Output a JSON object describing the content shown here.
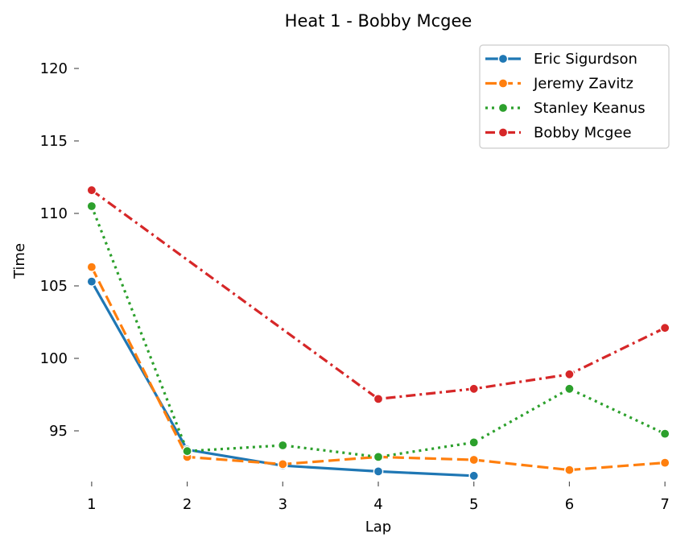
{
  "chart_data": {
    "type": "line",
    "title": "Heat 1 - Bobby Mcgee",
    "xlabel": "Lap",
    "ylabel": "Time",
    "x": [
      1,
      2,
      3,
      4,
      5,
      6,
      7
    ],
    "xticks": [
      "1",
      "2",
      "3",
      "4",
      "5",
      "6",
      "7"
    ],
    "yticks": [
      95,
      100,
      105,
      110,
      115,
      120
    ],
    "ytick_labels": [
      "95",
      "100",
      "105",
      "110",
      "115",
      "120"
    ],
    "xlim": [
      0.9,
      7.1
    ],
    "ylim": [
      91.5,
      122.5
    ],
    "grid": false,
    "legend_position": "top-right",
    "series": [
      {
        "name": "Eric Sigurdson",
        "color": "#1f77b4",
        "dash": "solid",
        "x": [
          1,
          2,
          3,
          4,
          5
        ],
        "values": [
          105.3,
          93.7,
          92.6,
          92.2,
          91.9
        ]
      },
      {
        "name": "Jeremy Zavitz",
        "color": "#ff7f0e",
        "dash": "dashed",
        "x": [
          1,
          2,
          3,
          4,
          5,
          6,
          7
        ],
        "values": [
          106.3,
          93.2,
          92.7,
          93.2,
          93.0,
          92.3,
          92.8
        ]
      },
      {
        "name": "Stanley Keanus",
        "color": "#2ca02c",
        "dash": "dotted",
        "x": [
          1,
          2,
          3,
          4,
          5,
          6,
          7
        ],
        "values": [
          110.5,
          93.6,
          94.0,
          93.2,
          94.2,
          97.9,
          94.8
        ]
      },
      {
        "name": "Bobby Mcgee",
        "color": "#d62728",
        "dash": "dashdot",
        "x": [
          1,
          4,
          5,
          6,
          7
        ],
        "values": [
          111.6,
          97.2,
          97.9,
          98.9,
          102.1
        ]
      }
    ]
  }
}
